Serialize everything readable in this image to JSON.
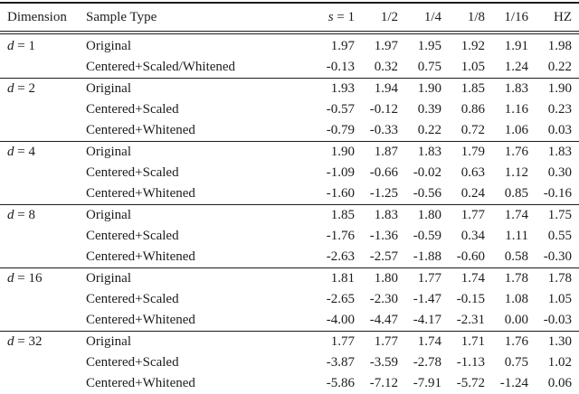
{
  "table": {
    "header": {
      "dimension": "Dimension",
      "sample_type": "Sample Type",
      "s_var": "s",
      "s_rest": " = 1",
      "col2": "1/2",
      "col3": "1/4",
      "col4": "1/8",
      "col5": "1/16",
      "col6": "HZ"
    },
    "groups": [
      {
        "dim_var": "d",
        "dim_rest": " = 1",
        "rows": [
          {
            "label": "Original",
            "values": [
              "1.97",
              "1.97",
              "1.95",
              "1.92",
              "1.91",
              "1.98"
            ]
          },
          {
            "label": "Centered+Scaled/Whitened",
            "values": [
              "-0.13",
              "0.32",
              "0.75",
              "1.05",
              "1.24",
              "0.22"
            ]
          }
        ]
      },
      {
        "dim_var": "d",
        "dim_rest": " = 2",
        "rows": [
          {
            "label": "Original",
            "values": [
              "1.93",
              "1.94",
              "1.90",
              "1.85",
              "1.83",
              "1.90"
            ]
          },
          {
            "label": "Centered+Scaled",
            "values": [
              "-0.57",
              "-0.12",
              "0.39",
              "0.86",
              "1.16",
              "0.23"
            ]
          },
          {
            "label": "Centered+Whitened",
            "values": [
              "-0.79",
              "-0.33",
              "0.22",
              "0.72",
              "1.06",
              "0.03"
            ]
          }
        ]
      },
      {
        "dim_var": "d",
        "dim_rest": " = 4",
        "rows": [
          {
            "label": "Original",
            "values": [
              "1.90",
              "1.87",
              "1.83",
              "1.79",
              "1.76",
              "1.83"
            ]
          },
          {
            "label": "Centered+Scaled",
            "values": [
              "-1.09",
              "-0.66",
              "-0.02",
              "0.63",
              "1.12",
              "0.30"
            ]
          },
          {
            "label": "Centered+Whitened",
            "values": [
              "-1.60",
              "-1.25",
              "-0.56",
              "0.24",
              "0.85",
              "-0.16"
            ]
          }
        ]
      },
      {
        "dim_var": "d",
        "dim_rest": " = 8",
        "rows": [
          {
            "label": "Original",
            "values": [
              "1.85",
              "1.83",
              "1.80",
              "1.77",
              "1.74",
              "1.75"
            ]
          },
          {
            "label": "Centered+Scaled",
            "values": [
              "-1.76",
              "-1.36",
              "-0.59",
              "0.34",
              "1.11",
              "0.55"
            ]
          },
          {
            "label": "Centered+Whitened",
            "values": [
              "-2.63",
              "-2.57",
              "-1.88",
              "-0.60",
              "0.58",
              "-0.30"
            ]
          }
        ]
      },
      {
        "dim_var": "d",
        "dim_rest": " = 16",
        "rows": [
          {
            "label": "Original",
            "values": [
              "1.81",
              "1.80",
              "1.77",
              "1.74",
              "1.78",
              "1.78"
            ]
          },
          {
            "label": "Centered+Scaled",
            "values": [
              "-2.65",
              "-2.30",
              "-1.47",
              "-0.15",
              "1.08",
              "1.05"
            ]
          },
          {
            "label": "Centered+Whitened",
            "values": [
              "-4.00",
              "-4.47",
              "-4.17",
              "-2.31",
              "0.00",
              "-0.03"
            ]
          }
        ]
      },
      {
        "dim_var": "d",
        "dim_rest": " = 32",
        "rows": [
          {
            "label": "Original",
            "values": [
              "1.77",
              "1.77",
              "1.74",
              "1.71",
              "1.76",
              "1.30"
            ]
          },
          {
            "label": "Centered+Scaled",
            "values": [
              "-3.87",
              "-3.59",
              "-2.78",
              "-1.13",
              "0.75",
              "1.02"
            ]
          },
          {
            "label": "Centered+Whitened",
            "values": [
              "-5.86",
              "-7.12",
              "-7.91",
              "-5.72",
              "-1.24",
              "0.06"
            ]
          }
        ]
      }
    ]
  }
}
